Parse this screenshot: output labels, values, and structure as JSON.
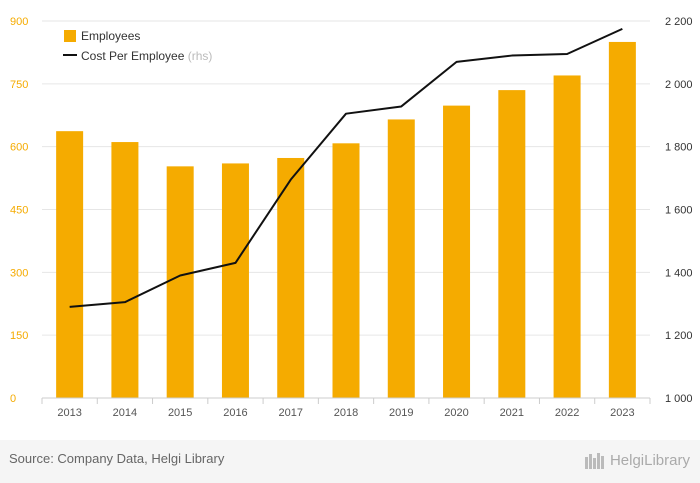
{
  "chart_data": {
    "type": "bar+line",
    "categories": [
      "2013",
      "2014",
      "2015",
      "2016",
      "2017",
      "2018",
      "2019",
      "2020",
      "2021",
      "2022",
      "2023"
    ],
    "series": [
      {
        "name": "Employees",
        "type": "bar",
        "axis": "left",
        "color": "#f5ab00",
        "values": [
          637,
          611,
          553,
          560,
          573,
          608,
          665,
          698,
          735,
          770,
          850
        ]
      },
      {
        "name": "Cost Per Employee",
        "name_suffix": "(rhs)",
        "type": "line",
        "axis": "right",
        "color": "#111111",
        "values": [
          1290,
          1305,
          1390,
          1430,
          1695,
          1905,
          1928,
          2070,
          2090,
          2095,
          2175
        ]
      }
    ],
    "y_left": {
      "min": 0,
      "max": 900,
      "ticks": [
        "0",
        "150",
        "300",
        "450",
        "600",
        "750",
        "900"
      ],
      "color": "#f5ab00"
    },
    "y_right": {
      "min": 1000,
      "max": 2200,
      "ticks": [
        "1 000",
        "1 200",
        "1 400",
        "1 600",
        "1 800",
        "2 000",
        "2 200"
      ]
    },
    "grid": true,
    "legend_position": "top-left"
  },
  "footer": {
    "source": "Source: Company Data, Helgi Library",
    "logo_text": "HelgiLibrary"
  }
}
